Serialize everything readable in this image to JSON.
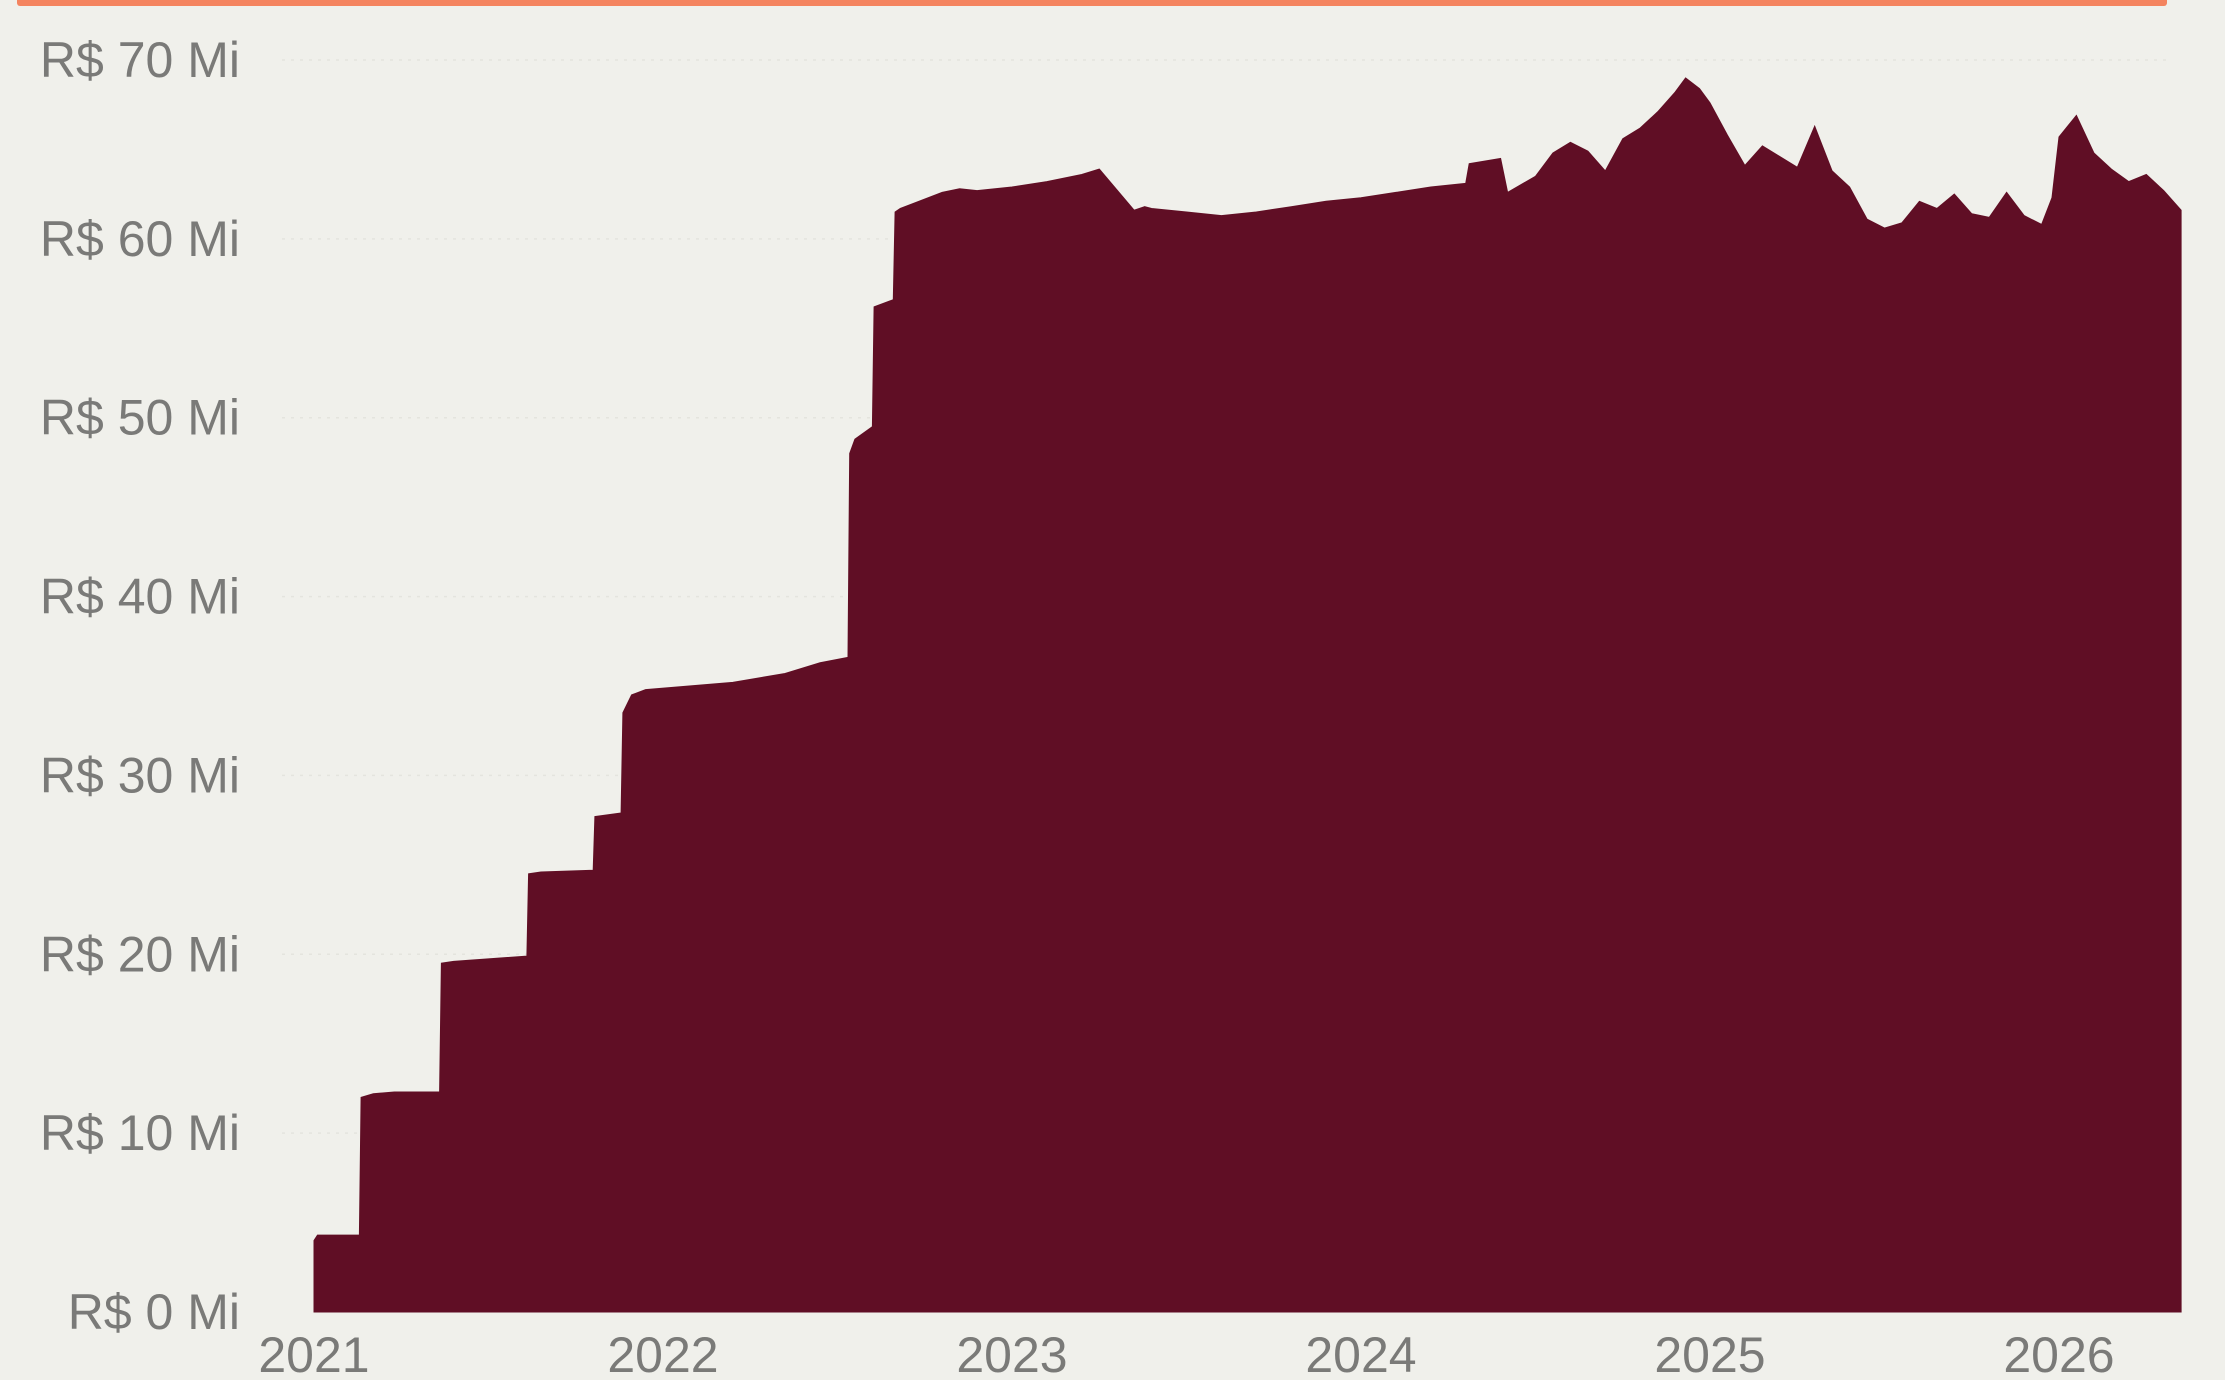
{
  "colors": {
    "background": "#f0f0eb",
    "accent_bar": "#f4845f",
    "area_fill": "#600e25",
    "tick_text": "#7a7a78"
  },
  "chart_data": {
    "type": "area",
    "title": "",
    "xlabel": "",
    "ylabel": "",
    "legend": "none",
    "grid": true,
    "ylim": [
      0,
      70
    ],
    "xlim": [
      2021.0,
      2026.35
    ],
    "y_ticks": [
      0,
      10,
      20,
      30,
      40,
      50,
      60,
      70
    ],
    "y_tick_labels": [
      "R$ 0 Mi",
      "R$ 10 Mi",
      "R$ 20 Mi",
      "R$ 30 Mi",
      "R$ 40 Mi",
      "R$ 50 Mi",
      "R$ 60 Mi",
      "R$ 70 Mi"
    ],
    "x_ticks": [
      2021,
      2022,
      2023,
      2024,
      2025,
      2026
    ],
    "x_tick_labels": [
      "2021",
      "2022",
      "2023",
      "2024",
      "2025",
      "2026"
    ],
    "x": [
      2021.0,
      2021.01,
      2021.13,
      2021.135,
      2021.17,
      2021.23,
      2021.36,
      2021.365,
      2021.4,
      2021.61,
      2021.615,
      2021.65,
      2021.8,
      2021.805,
      2021.88,
      2021.885,
      2021.91,
      2021.95,
      2022.2,
      2022.35,
      2022.45,
      2022.53,
      2022.535,
      2022.55,
      2022.6,
      2022.605,
      2022.66,
      2022.665,
      2022.68,
      2022.72,
      2022.8,
      2022.85,
      2022.9,
      2023.0,
      2023.1,
      2023.2,
      2023.25,
      2023.35,
      2023.38,
      2023.4,
      2023.5,
      2023.6,
      2023.7,
      2023.8,
      2023.9,
      2024.0,
      2024.1,
      2024.2,
      2024.3,
      2024.31,
      2024.4,
      2024.42,
      2024.5,
      2024.55,
      2024.6,
      2024.65,
      2024.7,
      2024.75,
      2024.8,
      2024.85,
      2024.9,
      2024.93,
      2024.97,
      2025.0,
      2025.05,
      2025.1,
      2025.15,
      2025.2,
      2025.25,
      2025.3,
      2025.35,
      2025.4,
      2025.45,
      2025.5,
      2025.55,
      2025.6,
      2025.65,
      2025.7,
      2025.75,
      2025.8,
      2025.85,
      2025.9,
      2025.95,
      2025.98,
      2026.0,
      2026.05,
      2026.1,
      2026.15,
      2026.2,
      2026.25,
      2026.3,
      2026.35
    ],
    "values": [
      4.0,
      4.3,
      4.3,
      12.0,
      12.2,
      12.3,
      12.3,
      19.5,
      19.6,
      19.9,
      24.5,
      24.6,
      24.7,
      27.7,
      27.9,
      33.5,
      34.5,
      34.8,
      35.2,
      35.7,
      36.3,
      36.6,
      48.0,
      48.8,
      49.5,
      56.2,
      56.6,
      61.5,
      61.7,
      62.0,
      62.6,
      62.8,
      62.7,
      62.9,
      63.2,
      63.6,
      63.9,
      61.6,
      61.8,
      61.7,
      61.5,
      61.3,
      61.5,
      61.8,
      62.1,
      62.3,
      62.6,
      62.9,
      63.1,
      64.2,
      64.5,
      62.6,
      63.5,
      64.8,
      65.4,
      64.9,
      63.8,
      65.6,
      66.2,
      67.1,
      68.2,
      69.0,
      68.4,
      67.6,
      65.8,
      64.1,
      65.2,
      64.6,
      64.0,
      66.3,
      63.8,
      62.9,
      61.1,
      60.6,
      60.9,
      62.1,
      61.7,
      62.5,
      61.4,
      61.2,
      62.6,
      61.3,
      60.8,
      62.3,
      65.7,
      66.9,
      64.8,
      63.9,
      63.2,
      63.6,
      62.7,
      61.6
    ]
  }
}
